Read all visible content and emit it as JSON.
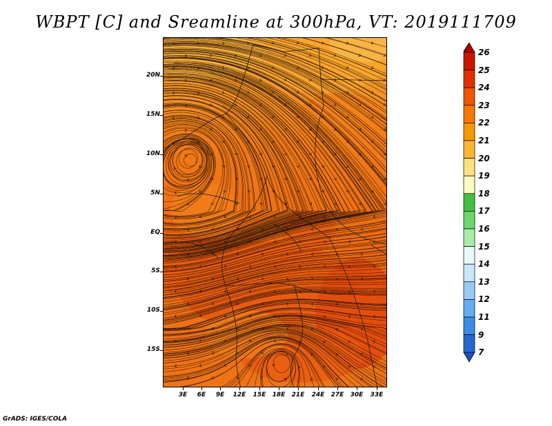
{
  "title": "WBPT [C] and Sreamline at 300hPa, VT: 2019111709",
  "footer": "GrADS: IGES/COLA",
  "lat_labels": [
    "20N",
    "15N",
    "10N",
    "5N",
    "EQ",
    "5S",
    "10S",
    "15S"
  ],
  "lon_labels": [
    "3E",
    "6E",
    "9E",
    "12E",
    "15E",
    "18E",
    "21E",
    "24E",
    "27E",
    "30E",
    "33E"
  ],
  "colorbar": {
    "levels": [
      "26",
      "25",
      "24",
      "23",
      "22",
      "21",
      "20",
      "19",
      "18",
      "17",
      "16",
      "15",
      "14",
      "13",
      "12",
      "11",
      "9",
      "7"
    ],
    "colors": [
      "#b40000",
      "#cc1500",
      "#e03000",
      "#f05500",
      "#f57800",
      "#f89800",
      "#fbb530",
      "#fce080",
      "#fffabf",
      "#40c040",
      "#6ad86a",
      "#a8eca8",
      "#e6faf8",
      "#c8e6fa",
      "#96cbf5",
      "#64acf0",
      "#3c8ce6",
      "#2468d0",
      "#1a4fc0"
    ]
  },
  "map": {
    "field": "wet-bulb potential temperature",
    "palette": {
      "low": "#f9a52c",
      "mid": "#f47d17",
      "high": "#e85a10",
      "peak": "#e24a0c"
    }
  }
}
